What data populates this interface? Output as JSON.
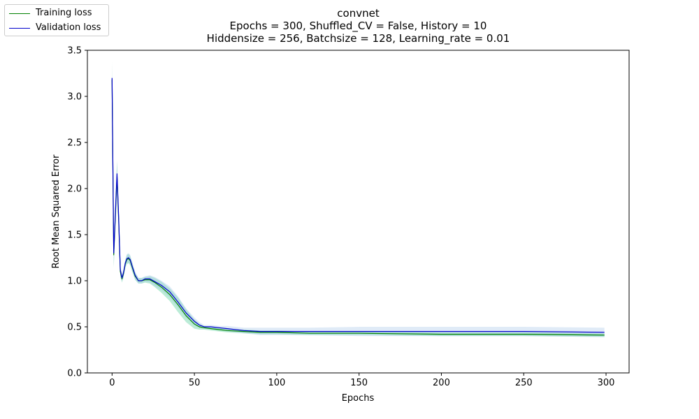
{
  "chart_data": {
    "type": "line",
    "title_lines": [
      "convnet",
      "Epochs = 300, Shuffled_CV = False, History = 10",
      "Hiddensize = 256, Batchsize = 128, Learning_rate = 0.01"
    ],
    "xlabel": "Epochs",
    "ylabel": "Root Mean Squared Error",
    "xlim": [
      -15,
      314
    ],
    "ylim": [
      0,
      3.5
    ],
    "xticks": [
      0,
      50,
      100,
      150,
      200,
      250,
      300
    ],
    "yticks": [
      0.0,
      0.5,
      1.0,
      1.5,
      2.0,
      2.5,
      3.0,
      3.5
    ],
    "grid": false,
    "legend_position": "top-left outside",
    "series": [
      {
        "name": "Training loss",
        "color": "#008000",
        "band_color": "#3cc88c",
        "x": [
          0,
          1,
          3,
          4,
          5,
          6,
          7,
          8,
          9,
          10,
          11,
          12,
          14,
          16,
          18,
          20,
          23,
          26,
          30,
          35,
          40,
          45,
          50,
          53,
          56,
          60,
          65,
          70,
          80,
          90,
          100,
          120,
          150,
          200,
          250,
          299
        ],
        "y": [
          3.18,
          1.28,
          2.13,
          1.65,
          1.1,
          1.02,
          1.08,
          1.18,
          1.23,
          1.24,
          1.22,
          1.16,
          1.05,
          1.0,
          1.0,
          1.01,
          1.01,
          0.98,
          0.93,
          0.85,
          0.74,
          0.62,
          0.53,
          0.5,
          0.49,
          0.48,
          0.47,
          0.46,
          0.45,
          0.44,
          0.44,
          0.43,
          0.43,
          0.42,
          0.42,
          0.41
        ],
        "band": [
          0.19,
          0.14,
          0.16,
          0.1,
          0.05,
          0.04,
          0.04,
          0.04,
          0.05,
          0.05,
          0.05,
          0.05,
          0.04,
          0.03,
          0.03,
          0.03,
          0.04,
          0.05,
          0.06,
          0.07,
          0.08,
          0.07,
          0.05,
          0.03,
          0.02,
          0.02,
          0.02,
          0.02,
          0.02,
          0.02,
          0.02,
          0.02,
          0.02,
          0.02,
          0.02,
          0.02
        ]
      },
      {
        "name": "Validation loss",
        "color": "#0000cc",
        "band_color": "#a7c7e7",
        "x": [
          0,
          1,
          3,
          4,
          5,
          6,
          7,
          8,
          9,
          10,
          11,
          12,
          14,
          16,
          18,
          20,
          23,
          26,
          30,
          35,
          40,
          45,
          50,
          53,
          56,
          60,
          65,
          70,
          80,
          90,
          100,
          120,
          150,
          200,
          250,
          299
        ],
        "y": [
          3.2,
          1.3,
          2.16,
          1.68,
          1.12,
          1.03,
          1.09,
          1.19,
          1.24,
          1.25,
          1.23,
          1.17,
          1.06,
          1.0,
          1.0,
          1.02,
          1.02,
          0.99,
          0.95,
          0.88,
          0.77,
          0.65,
          0.56,
          0.52,
          0.5,
          0.5,
          0.49,
          0.48,
          0.46,
          0.45,
          0.45,
          0.45,
          0.45,
          0.45,
          0.45,
          0.44
        ],
        "band": [
          0.17,
          0.13,
          0.15,
          0.09,
          0.05,
          0.04,
          0.04,
          0.04,
          0.05,
          0.05,
          0.05,
          0.05,
          0.04,
          0.03,
          0.03,
          0.03,
          0.04,
          0.05,
          0.05,
          0.06,
          0.06,
          0.05,
          0.04,
          0.03,
          0.02,
          0.02,
          0.02,
          0.03,
          0.03,
          0.04,
          0.04,
          0.04,
          0.05,
          0.05,
          0.05,
          0.05
        ]
      }
    ]
  }
}
